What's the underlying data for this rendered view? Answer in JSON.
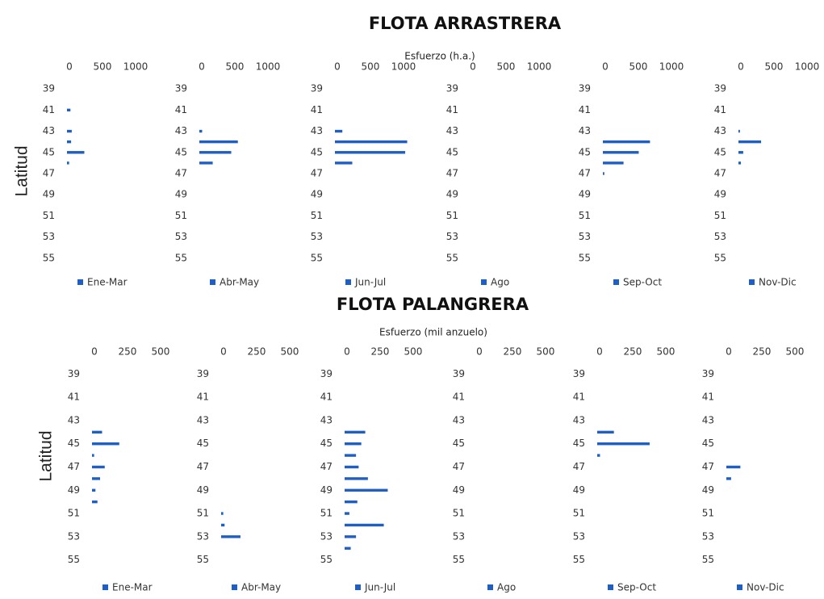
{
  "sections": [
    {
      "title": "FLOTA ARRASTRERA",
      "x_label": "Esfuerzo (h.a.)",
      "y_label": "Latitud",
      "chart_data": [
        {
          "type": "hbar",
          "xlim": [
            0,
            1220
          ],
          "xticks": [
            0,
            500,
            1000
          ],
          "ylim": [
            38,
            56
          ],
          "y_inverted": true,
          "yticks": [
            39,
            41,
            43,
            45,
            47,
            49,
            51,
            53,
            55
          ],
          "y": [
            41,
            43,
            44,
            45,
            46
          ],
          "series": [
            {
              "name": "Ene-Mar",
              "color": "#1f5fc4",
              "values": [
                40,
                60,
                50,
                250,
                20
              ]
            }
          ]
        },
        {
          "type": "hbar",
          "xlim": [
            0,
            1220
          ],
          "xticks": [
            0,
            500,
            1000
          ],
          "ylim": [
            38,
            56
          ],
          "y_inverted": true,
          "yticks": [
            39,
            41,
            43,
            45,
            47,
            49,
            51,
            53,
            55
          ],
          "y": [
            43,
            44,
            45,
            46
          ],
          "series": [
            {
              "name": "Abr-May",
              "color": "#1f5fc4",
              "values": [
                30,
                570,
                470,
                190
              ]
            }
          ]
        },
        {
          "type": "hbar",
          "xlim": [
            0,
            1220
          ],
          "xticks": [
            0,
            500,
            1000
          ],
          "ylim": [
            38,
            56
          ],
          "y_inverted": true,
          "yticks": [
            39,
            41,
            43,
            45,
            47,
            49,
            51,
            53,
            55
          ],
          "y": [
            43,
            44,
            45,
            46
          ],
          "series": [
            {
              "name": "Jun-Jul",
              "color": "#1f5fc4",
              "values": [
                100,
                1080,
                1050,
                250
              ]
            }
          ]
        },
        {
          "type": "hbar",
          "xlim": [
            0,
            1220
          ],
          "xticks": [
            0,
            500,
            1000
          ],
          "ylim": [
            38,
            56
          ],
          "y_inverted": true,
          "yticks": [
            39,
            41,
            43,
            45,
            47,
            49,
            51,
            53,
            55
          ],
          "y": [],
          "series": [
            {
              "name": "Ago",
              "color": "#1f5fc4",
              "values": []
            }
          ]
        },
        {
          "type": "hbar",
          "xlim": [
            0,
            1220
          ],
          "xticks": [
            0,
            500,
            1000
          ],
          "ylim": [
            38,
            56
          ],
          "y_inverted": true,
          "yticks": [
            39,
            41,
            43,
            45,
            47,
            49,
            51,
            53,
            55
          ],
          "y": [
            44,
            45,
            46,
            47
          ],
          "series": [
            {
              "name": "Sep-Oct",
              "color": "#1f5fc4",
              "values": [
                700,
                530,
                300,
                10
              ]
            }
          ]
        },
        {
          "type": "hbar",
          "xlim": [
            0,
            1220
          ],
          "xticks": [
            0,
            500,
            1000
          ],
          "ylim": [
            38,
            56
          ],
          "y_inverted": true,
          "yticks": [
            39,
            41,
            43,
            45,
            47,
            49,
            51,
            53,
            55
          ],
          "y": [
            43,
            44,
            45,
            46
          ],
          "series": [
            {
              "name": "Nov-Dic",
              "color": "#1f5fc4",
              "values": [
                10,
                330,
                60,
                25
              ]
            }
          ]
        }
      ]
    },
    {
      "title": "FLOTA PALANGRERA",
      "x_label": "Esfuerzo (mil anzuelo)",
      "y_label": "Latitud",
      "chart_data": [
        {
          "type": "hbar",
          "xlim": [
            0,
            610
          ],
          "xticks": [
            0,
            250,
            500
          ],
          "ylim": [
            38,
            56
          ],
          "y_inverted": true,
          "yticks": [
            39,
            41,
            43,
            45,
            47,
            49,
            51,
            53,
            55
          ],
          "y": [
            44,
            45,
            46,
            47,
            48,
            49,
            50
          ],
          "series": [
            {
              "name": "Ene-Mar",
              "color": "#1f5fc4",
              "values": [
                70,
                200,
                10,
                90,
                55,
                20,
                35
              ]
            }
          ]
        },
        {
          "type": "hbar",
          "xlim": [
            0,
            610
          ],
          "xticks": [
            0,
            250,
            500
          ],
          "ylim": [
            38,
            56
          ],
          "y_inverted": true,
          "yticks": [
            39,
            41,
            43,
            45,
            47,
            49,
            51,
            53,
            55
          ],
          "y": [
            51,
            52,
            53
          ],
          "series": [
            {
              "name": "Abr-May",
              "color": "#1f5fc4",
              "values": [
                10,
                20,
                140
              ]
            }
          ]
        },
        {
          "type": "hbar",
          "xlim": [
            0,
            610
          ],
          "xticks": [
            0,
            250,
            500
          ],
          "ylim": [
            38,
            56
          ],
          "y_inverted": true,
          "yticks": [
            39,
            41,
            43,
            45,
            47,
            49,
            51,
            53,
            55
          ],
          "y": [
            44,
            45,
            46,
            47,
            48,
            49,
            50,
            51,
            52,
            53,
            54
          ],
          "series": [
            {
              "name": "Jun-Jul",
              "color": "#1f5fc4",
              "values": [
                150,
                120,
                80,
                100,
                170,
                320,
                90,
                30,
                290,
                80,
                40
              ]
            }
          ]
        },
        {
          "type": "hbar",
          "xlim": [
            0,
            610
          ],
          "xticks": [
            0,
            250,
            500
          ],
          "ylim": [
            38,
            56
          ],
          "y_inverted": true,
          "yticks": [
            39,
            41,
            43,
            45,
            47,
            49,
            51,
            53,
            55
          ],
          "y": [],
          "series": [
            {
              "name": "Ago",
              "color": "#1f5fc4",
              "values": []
            }
          ]
        },
        {
          "type": "hbar",
          "xlim": [
            0,
            610
          ],
          "xticks": [
            0,
            250,
            500
          ],
          "ylim": [
            38,
            56
          ],
          "y_inverted": true,
          "yticks": [
            39,
            41,
            43,
            45,
            47,
            49,
            51,
            53,
            55
          ],
          "y": [
            44,
            45,
            46
          ],
          "series": [
            {
              "name": "Sep-Oct",
              "color": "#1f5fc4",
              "values": [
                120,
                390,
                15
              ]
            }
          ]
        },
        {
          "type": "hbar",
          "xlim": [
            0,
            610
          ],
          "xticks": [
            0,
            250,
            500
          ],
          "ylim": [
            38,
            56
          ],
          "y_inverted": true,
          "yticks": [
            39,
            41,
            43,
            45,
            47,
            49,
            51,
            53,
            55
          ],
          "y": [
            47,
            48
          ],
          "series": [
            {
              "name": "Nov-Dic",
              "color": "#1f5fc4",
              "values": [
                100,
                30
              ]
            }
          ]
        }
      ]
    }
  ]
}
